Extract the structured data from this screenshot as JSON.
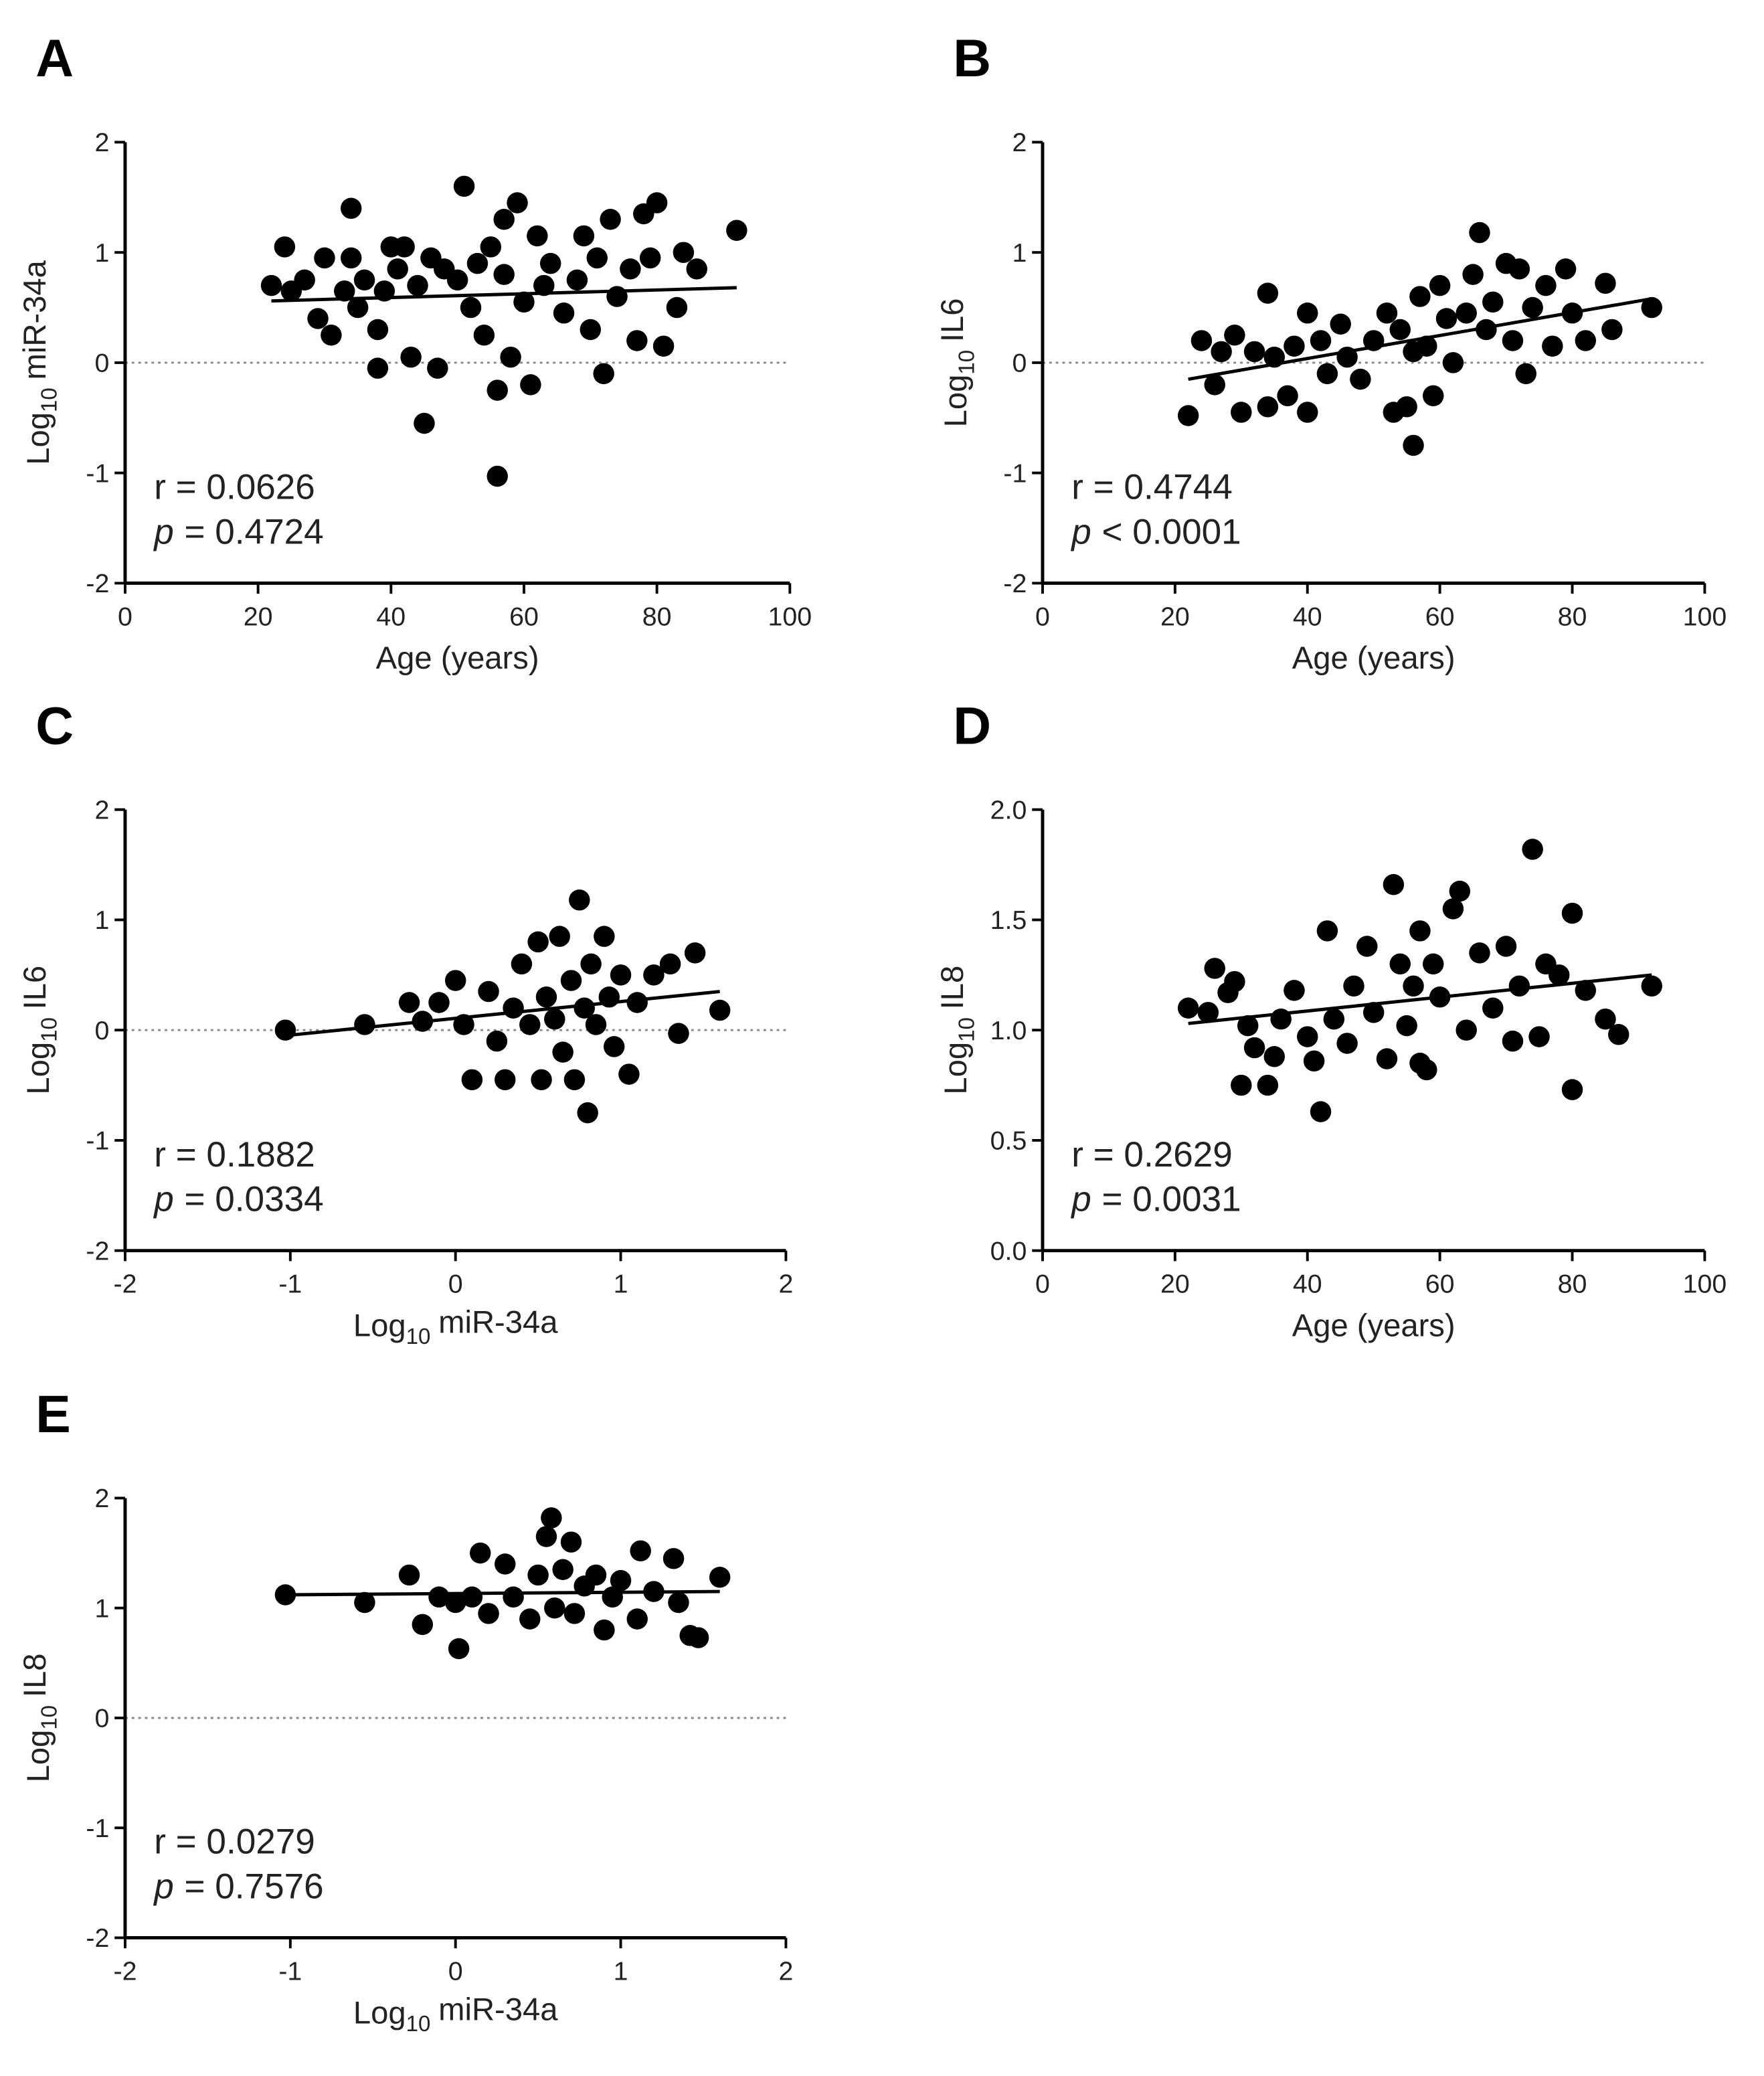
{
  "chart_data": [
    {
      "type": "scatter",
      "panel": "A",
      "color": "#000000",
      "x": [
        22,
        24,
        25,
        27,
        29,
        30,
        31,
        33,
        34,
        34,
        35,
        36,
        38,
        38,
        39,
        40,
        41,
        42,
        43,
        44,
        45,
        46,
        47,
        48,
        50,
        51,
        52,
        53,
        54,
        55,
        56,
        56,
        57,
        57,
        58,
        59,
        60,
        61,
        62,
        63,
        64,
        66,
        68,
        69,
        70,
        71,
        72,
        73,
        74,
        76,
        77,
        78,
        79,
        80,
        81,
        83,
        84,
        86,
        92
      ],
      "values": [
        0.7,
        1.05,
        0.65,
        0.75,
        0.4,
        0.95,
        0.25,
        0.65,
        1.4,
        0.95,
        0.5,
        0.75,
        0.3,
        -0.05,
        0.65,
        1.05,
        0.85,
        1.05,
        0.05,
        0.7,
        -0.55,
        0.95,
        -0.05,
        0.85,
        0.75,
        1.6,
        0.5,
        0.9,
        0.25,
        1.05,
        -1.03,
        -0.25,
        1.3,
        0.8,
        0.05,
        1.45,
        0.55,
        -0.2,
        1.15,
        0.7,
        0.9,
        0.45,
        0.75,
        1.15,
        0.3,
        0.95,
        -0.1,
        1.3,
        0.6,
        0.85,
        0.2,
        1.35,
        0.95,
        1.45,
        0.15,
        0.5,
        1.0,
        0.85,
        1.2
      ],
      "fit": {
        "x": [
          22,
          92
        ],
        "y": [
          0.56,
          0.68
        ]
      },
      "xlim": [
        0,
        100
      ],
      "ylim": [
        -2,
        2
      ],
      "xticks": [
        0,
        20,
        40,
        60,
        80,
        100
      ],
      "yticks": [
        -2,
        -1,
        0,
        1,
        2
      ],
      "refline": 0,
      "xlabel": {
        "text": "Age (years)"
      },
      "ylabel": {
        "prefix": "Log",
        "sub": "10",
        "text": "miR-34a"
      },
      "stats": {
        "r": "r = 0.0626",
        "p_symbol": "p",
        "p": "= 0.4724"
      }
    },
    {
      "type": "scatter",
      "panel": "B",
      "color": "#000000",
      "x": [
        22,
        24,
        26,
        27,
        29,
        30,
        32,
        34,
        34,
        35,
        37,
        38,
        40,
        40,
        42,
        43,
        45,
        46,
        48,
        50,
        52,
        53,
        54,
        55,
        56,
        56,
        57,
        58,
        59,
        60,
        61,
        62,
        64,
        65,
        66,
        67,
        68,
        70,
        71,
        72,
        73,
        74,
        76,
        77,
        79,
        80,
        82,
        85,
        86,
        92
      ],
      "values": [
        -0.48,
        0.2,
        -0.2,
        0.1,
        0.25,
        -0.45,
        0.1,
        0.63,
        -0.4,
        0.05,
        -0.3,
        0.15,
        0.45,
        -0.45,
        0.2,
        -0.1,
        0.35,
        0.05,
        -0.15,
        0.2,
        0.45,
        -0.45,
        0.3,
        -0.4,
        -0.75,
        0.1,
        0.6,
        0.15,
        -0.3,
        0.7,
        0.4,
        0.0,
        0.45,
        0.8,
        1.18,
        0.3,
        0.55,
        0.9,
        0.2,
        0.85,
        -0.1,
        0.5,
        0.7,
        0.15,
        0.85,
        0.45,
        0.2,
        0.72,
        0.3,
        0.5
      ],
      "fit": {
        "x": [
          22,
          92
        ],
        "y": [
          -0.15,
          0.58
        ]
      },
      "xlim": [
        0,
        100
      ],
      "ylim": [
        -2,
        2
      ],
      "xticks": [
        0,
        20,
        40,
        60,
        80,
        100
      ],
      "yticks": [
        -2,
        -1,
        0,
        1,
        2
      ],
      "refline": 0,
      "xlabel": {
        "text": "Age (years)"
      },
      "ylabel": {
        "prefix": "Log",
        "sub": "10",
        "text": "IL6"
      },
      "stats": {
        "r": "r = 0.4744",
        "p_symbol": "p",
        "p": "< 0.0001"
      }
    },
    {
      "type": "scatter",
      "panel": "C",
      "color": "#000000",
      "x": [
        -1.03,
        -0.55,
        -0.28,
        -0.2,
        -0.1,
        0.0,
        0.05,
        0.1,
        0.2,
        0.25,
        0.3,
        0.35,
        0.4,
        0.45,
        0.5,
        0.52,
        0.55,
        0.6,
        0.63,
        0.65,
        0.7,
        0.72,
        0.75,
        0.78,
        0.8,
        0.82,
        0.85,
        0.9,
        0.93,
        0.96,
        1.0,
        1.05,
        1.1,
        1.2,
        1.3,
        1.35,
        1.45,
        1.6
      ],
      "values": [
        0,
        0.05,
        0.25,
        0.08,
        0.25,
        0.45,
        0.05,
        -0.45,
        0.35,
        -0.1,
        -0.45,
        0.2,
        0.6,
        0.05,
        0.8,
        -0.45,
        0.3,
        0.1,
        0.85,
        -0.2,
        0.45,
        -0.45,
        1.18,
        0.2,
        -0.75,
        0.6,
        0.05,
        0.85,
        0.3,
        -0.15,
        0.5,
        -0.4,
        0.25,
        0.5,
        0.6,
        -0.03,
        0.7,
        0.18
      ],
      "fit": {
        "x": [
          -1.03,
          1.6
        ],
        "y": [
          -0.05,
          0.35
        ]
      },
      "xlim": [
        -2,
        2
      ],
      "ylim": [
        -2,
        2
      ],
      "xticks": [
        -2,
        -1,
        0,
        1,
        2
      ],
      "yticks": [
        -2,
        -1,
        0,
        1,
        2
      ],
      "refline": 0,
      "xlabel": {
        "prefix": "Log",
        "sub": "10",
        "text": "miR-34a"
      },
      "ylabel": {
        "prefix": "Log",
        "sub": "10",
        "text": "IL6"
      },
      "stats": {
        "r": "r = 0.1882",
        "p_symbol": "p",
        "p": "= 0.0334"
      }
    },
    {
      "type": "scatter",
      "panel": "D",
      "color": "#000000",
      "x": [
        22,
        25,
        26,
        28,
        29,
        30,
        31,
        32,
        34,
        35,
        36,
        38,
        40,
        41,
        42,
        43,
        44,
        46,
        47,
        49,
        50,
        52,
        53,
        54,
        55,
        56,
        57,
        57,
        58,
        59,
        60,
        62,
        63,
        64,
        66,
        68,
        70,
        71,
        72,
        74,
        75,
        76,
        78,
        80,
        80,
        82,
        85,
        87,
        92
      ],
      "values": [
        1.1,
        1.08,
        1.28,
        1.17,
        1.22,
        0.75,
        1.02,
        0.92,
        0.75,
        0.88,
        1.05,
        1.18,
        0.97,
        0.86,
        0.63,
        1.45,
        1.05,
        0.94,
        1.2,
        1.38,
        1.08,
        0.87,
        1.66,
        1.3,
        1.02,
        1.2,
        0.85,
        1.45,
        0.82,
        1.3,
        1.15,
        1.55,
        1.63,
        1.0,
        1.35,
        1.1,
        1.38,
        0.95,
        1.2,
        1.82,
        0.97,
        1.3,
        1.25,
        1.53,
        0.73,
        1.18,
        1.05,
        0.98,
        1.2
      ],
      "fit": {
        "x": [
          22,
          92
        ],
        "y": [
          1.03,
          1.25
        ]
      },
      "xlim": [
        0,
        100
      ],
      "ylim": [
        0,
        2
      ],
      "xticks": [
        0,
        20,
        40,
        60,
        80,
        100
      ],
      "yticks": [
        {
          "value": 0,
          "label": "0.0"
        },
        0.5,
        {
          "value": 1,
          "label": "1.0"
        },
        1.5,
        {
          "value": 2,
          "label": "2.0"
        }
      ],
      "xlabel": {
        "text": "Age (years)"
      },
      "ylabel": {
        "prefix": "Log",
        "sub": "10",
        "text": "IL8"
      },
      "stats": {
        "r": "r = 0.2629",
        "p_symbol": "p",
        "p": "= 0.0031"
      }
    },
    {
      "type": "scatter",
      "panel": "E",
      "color": "#000000",
      "x": [
        -1.03,
        -0.55,
        -0.28,
        -0.2,
        -0.1,
        0.0,
        0.02,
        0.1,
        0.15,
        0.2,
        0.3,
        0.35,
        0.45,
        0.5,
        0.55,
        0.58,
        0.6,
        0.65,
        0.7,
        0.72,
        0.78,
        0.85,
        0.9,
        0.95,
        1.0,
        1.1,
        1.12,
        1.2,
        1.32,
        1.35,
        1.42,
        1.47,
        1.6
      ],
      "values": [
        1.12,
        1.05,
        1.3,
        0.85,
        1.1,
        1.05,
        0.63,
        1.1,
        1.5,
        0.95,
        1.4,
        1.1,
        0.9,
        1.3,
        1.65,
        1.82,
        1.0,
        1.35,
        1.6,
        0.95,
        1.2,
        1.3,
        0.8,
        1.1,
        1.25,
        0.9,
        1.52,
        1.15,
        1.45,
        1.05,
        0.75,
        0.73,
        1.28
      ],
      "fit": {
        "x": [
          -1.03,
          1.6
        ],
        "y": [
          1.12,
          1.15
        ]
      },
      "xlim": [
        -2,
        2
      ],
      "ylim": [
        -2,
        2
      ],
      "xticks": [
        -2,
        -1,
        0,
        1,
        2
      ],
      "yticks": [
        -2,
        -1,
        0,
        1,
        2
      ],
      "refline": 0,
      "xlabel": {
        "prefix": "Log",
        "sub": "10",
        "text": "miR-34a"
      },
      "ylabel": {
        "prefix": "Log",
        "sub": "10",
        "text": "IL8"
      },
      "stats": {
        "r": "r = 0.0279",
        "p_symbol": "p",
        "p": "= 0.7576"
      }
    }
  ]
}
